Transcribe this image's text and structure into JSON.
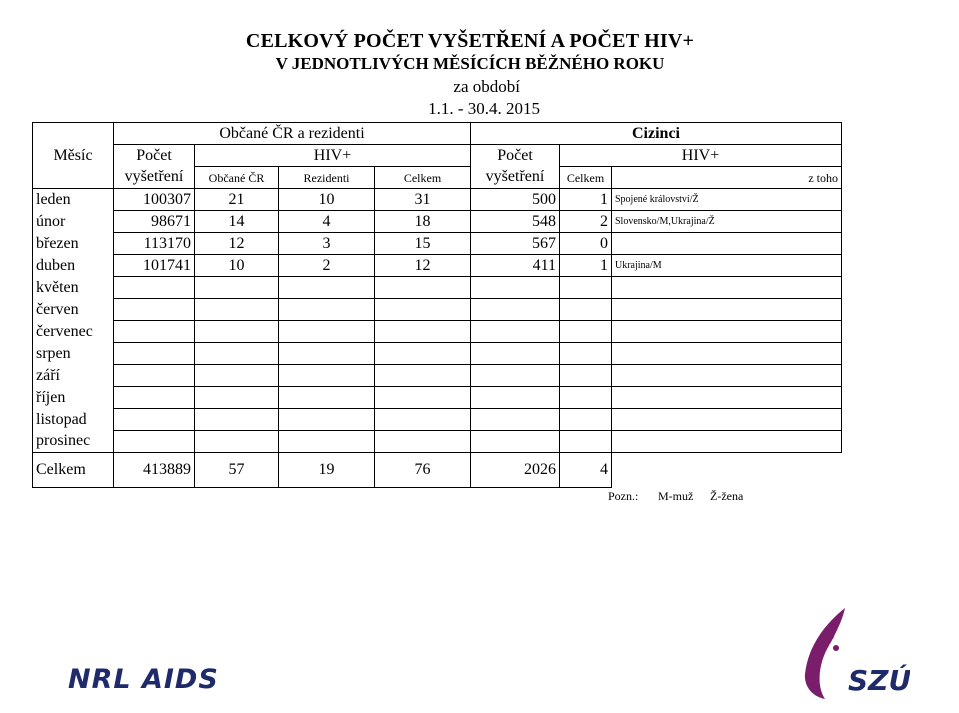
{
  "title": {
    "line1": "CELKOVÝ POČET VYŠETŘENÍ A POČET HIV+",
    "line2": "V JEDNOTLIVÝCH MĚSÍCÍCH BĚŽNÉHO ROKU",
    "line3": "za období",
    "line4": "1.1. - 30.4.  2015"
  },
  "header": {
    "mesic": "Měsíc",
    "group_cz": "Občané ČR a rezidenti",
    "group_foreign": "Cizinci",
    "pocet": "Počet",
    "vysetreni": "vyšetření",
    "hiv": "HIV+",
    "obcane": "Občané ČR",
    "rezidenti": "Rezidenti",
    "celkem": "Celkem",
    "pocet2": "Počet",
    "vysetreni2": "vyšetření",
    "celkem2": "Celkem",
    "hiv2": "HIV+",
    "ztoho": "z toho"
  },
  "rows": [
    {
      "month": "leden",
      "pocet": "100307",
      "obcane": "21",
      "rezidenti": "10",
      "celkem": "31",
      "cz_pocet": "500",
      "cz_celkem": "1",
      "ztoho": "Spojené království/Ž"
    },
    {
      "month": "únor",
      "pocet": "98671",
      "obcane": "14",
      "rezidenti": "4",
      "celkem": "18",
      "cz_pocet": "548",
      "cz_celkem": "2",
      "ztoho": "Slovensko/M,Ukrajina/Ž"
    },
    {
      "month": "březen",
      "pocet": "113170",
      "obcane": "12",
      "rezidenti": "3",
      "celkem": "15",
      "cz_pocet": "567",
      "cz_celkem": "0",
      "ztoho": ""
    },
    {
      "month": "duben",
      "pocet": "101741",
      "obcane": "10",
      "rezidenti": "2",
      "celkem": "12",
      "cz_pocet": "411",
      "cz_celkem": "1",
      "ztoho": "Ukrajina/M"
    },
    {
      "month": "květen",
      "pocet": "",
      "obcane": "",
      "rezidenti": "",
      "celkem": "",
      "cz_pocet": "",
      "cz_celkem": "",
      "ztoho": ""
    },
    {
      "month": "červen",
      "pocet": "",
      "obcane": "",
      "rezidenti": "",
      "celkem": "",
      "cz_pocet": "",
      "cz_celkem": "",
      "ztoho": ""
    },
    {
      "month": "červenec",
      "pocet": "",
      "obcane": "",
      "rezidenti": "",
      "celkem": "",
      "cz_pocet": "",
      "cz_celkem": "",
      "ztoho": ""
    },
    {
      "month": "srpen",
      "pocet": "",
      "obcane": "",
      "rezidenti": "",
      "celkem": "",
      "cz_pocet": "",
      "cz_celkem": "",
      "ztoho": ""
    },
    {
      "month": "září",
      "pocet": "",
      "obcane": "",
      "rezidenti": "",
      "celkem": "",
      "cz_pocet": "",
      "cz_celkem": "",
      "ztoho": ""
    },
    {
      "month": "říjen",
      "pocet": "",
      "obcane": "",
      "rezidenti": "",
      "celkem": "",
      "cz_pocet": "",
      "cz_celkem": "",
      "ztoho": ""
    },
    {
      "month": "listopad",
      "pocet": "",
      "obcane": "",
      "rezidenti": "",
      "celkem": "",
      "cz_pocet": "",
      "cz_celkem": "",
      "ztoho": ""
    },
    {
      "month": "prosinec",
      "pocet": "",
      "obcane": "",
      "rezidenti": "",
      "celkem": "",
      "cz_pocet": "",
      "cz_celkem": "",
      "ztoho": ""
    }
  ],
  "total": {
    "label": "Celkem",
    "pocet": "413889",
    "obcane": "57",
    "rezidenti": "19",
    "celkem": "76",
    "cz_pocet": "2026",
    "cz_celkem": "4"
  },
  "note": {
    "pozn": "Pozn.:",
    "m": "M-muž",
    "z": "Ž-žena"
  },
  "logos": {
    "left": "NRL AIDS",
    "right": "SZÚ"
  },
  "colors": {
    "logo_blue": "#1f2a6b",
    "szu_purple": "#7a1e6c"
  }
}
